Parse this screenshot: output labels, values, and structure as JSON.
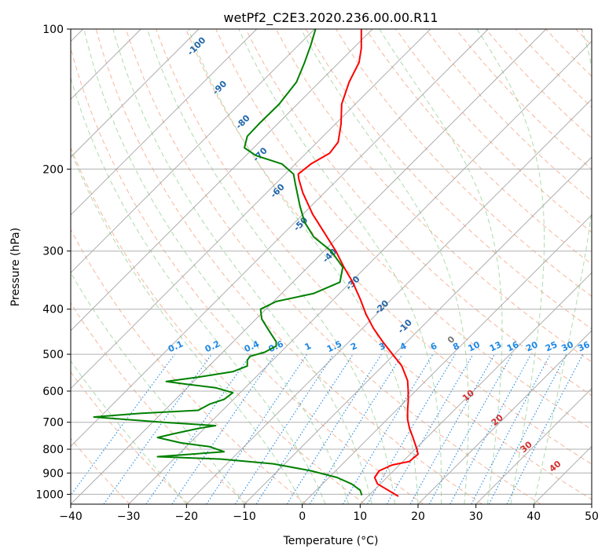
{
  "chart_data": {
    "type": "line",
    "title": "wetPf2_C2E3.2020.236.00.00.R11",
    "xlabel": "Temperature (°C)",
    "ylabel": "Pressure (hPa)",
    "xlim": [
      -40,
      50
    ],
    "ylim": [
      1050,
      100
    ],
    "y_scale": "log",
    "x_ticks": [
      -40,
      -30,
      -20,
      -10,
      0,
      10,
      20,
      30,
      40,
      50
    ],
    "y_ticks": [
      100,
      200,
      300,
      400,
      500,
      600,
      700,
      800,
      900,
      1000
    ],
    "x_tick_labels": [
      "−40",
      "−30",
      "−20",
      "−10",
      "0",
      "10",
      "20",
      "30",
      "40",
      "50"
    ],
    "y_tick_labels": [
      "100",
      "200",
      "300",
      "400",
      "500",
      "600",
      "700",
      "800",
      "900",
      "1000"
    ],
    "grid": true,
    "colors": {
      "temperature": "#ff0000",
      "dewpoint": "#008000",
      "isotherm": "#999999",
      "dry_adiabat": "#f4a582",
      "moist_adiabat": "#91cf91",
      "mixing_ratio": "#1e88e5",
      "dry_adiabat_label": "#2166ac",
      "moist_label": "#d32f2f"
    },
    "series": [
      {
        "role": "temperature",
        "points": [
          [
            16.6,
            1010
          ],
          [
            13.0,
            950
          ],
          [
            12.5,
            920
          ],
          [
            13.3,
            890
          ],
          [
            15.5,
            865
          ],
          [
            18.5,
            850
          ],
          [
            20.0,
            820
          ],
          [
            19.8,
            800
          ],
          [
            19.2,
            760
          ],
          [
            18.5,
            720
          ],
          [
            18.2,
            690
          ],
          [
            18.2,
            660
          ],
          [
            18.3,
            630
          ],
          [
            18.3,
            600
          ],
          [
            18.2,
            570
          ],
          [
            17.2,
            530
          ],
          [
            15.6,
            500
          ],
          [
            13.9,
            470
          ],
          [
            12.3,
            440
          ],
          [
            11.0,
            410
          ],
          [
            10.0,
            380
          ],
          [
            8.7,
            350
          ],
          [
            7.2,
            325
          ],
          [
            5.8,
            300
          ],
          [
            3.9,
            275
          ],
          [
            1.8,
            250
          ],
          [
            0.1,
            225
          ],
          [
            -0.6,
            210
          ],
          [
            -0.7,
            205
          ],
          [
            1.5,
            195
          ],
          [
            4.7,
            185
          ],
          [
            6.2,
            175
          ],
          [
            6.7,
            160
          ],
          [
            6.8,
            145
          ],
          [
            8.1,
            130
          ],
          [
            9.8,
            118
          ],
          [
            10.2,
            110
          ],
          [
            10.2,
            100
          ]
        ]
      },
      {
        "role": "dewpoint",
        "points": [
          [
            10.3,
            1005
          ],
          [
            10.0,
            980
          ],
          [
            8.5,
            950
          ],
          [
            6.0,
            920
          ],
          [
            1.5,
            890
          ],
          [
            -5.0,
            860
          ],
          [
            -14.0,
            840
          ],
          [
            -25.0,
            830
          ],
          [
            -13.5,
            810
          ],
          [
            -16.0,
            790
          ],
          [
            -21.0,
            775
          ],
          [
            -25.0,
            755
          ],
          [
            -22.0,
            740
          ],
          [
            -18.0,
            722
          ],
          [
            -15.0,
            712
          ],
          [
            -24.0,
            700
          ],
          [
            -36.0,
            682
          ],
          [
            -28.0,
            670
          ],
          [
            -18.0,
            660
          ],
          [
            -16.0,
            640
          ],
          [
            -13.5,
            625
          ],
          [
            -12.0,
            605
          ],
          [
            -15.0,
            590
          ],
          [
            -20.0,
            580
          ],
          [
            -23.5,
            572
          ],
          [
            -18.0,
            560
          ],
          [
            -12.0,
            545
          ],
          [
            -9.5,
            530
          ],
          [
            -9.5,
            515
          ],
          [
            -9.0,
            505
          ],
          [
            -6.5,
            495
          ],
          [
            -4.5,
            480
          ],
          [
            -4.5,
            470
          ],
          [
            -5.0,
            460
          ],
          [
            -6.0,
            440
          ],
          [
            -7.0,
            420
          ],
          [
            -7.2,
            400
          ],
          [
            -4.5,
            385
          ],
          [
            2.0,
            370
          ],
          [
            6.5,
            350
          ],
          [
            7.0,
            325
          ],
          [
            5.0,
            300
          ],
          [
            2.0,
            280
          ],
          [
            0.4,
            260
          ],
          [
            -0.4,
            240
          ],
          [
            -1.2,
            215
          ],
          [
            -1.5,
            205
          ],
          [
            -3.5,
            195
          ],
          [
            -8.0,
            187
          ],
          [
            -10.0,
            180
          ],
          [
            -9.5,
            170
          ],
          [
            -7.5,
            160
          ],
          [
            -4.0,
            145
          ],
          [
            -1.0,
            130
          ],
          [
            0.4,
            118
          ],
          [
            1.5,
            108
          ],
          [
            2.3,
            100
          ]
        ]
      }
    ],
    "isotherm_labels_c": [],
    "dry_adiabat_labels": [
      "-100",
      "-90",
      "-80",
      "-70",
      "-60",
      "-50",
      "-40",
      "-30",
      "-20",
      "-10",
      "0"
    ],
    "moist_adiabat_labels": [
      "10",
      "20",
      "30",
      "40"
    ],
    "mixing_ratio_labels": [
      "0.1",
      "0.2",
      "0.4",
      "0.6",
      "1",
      "1.5",
      "2",
      "3",
      "4",
      "6",
      "8",
      "10",
      "13",
      "16",
      "20",
      "25",
      "30",
      "36"
    ]
  }
}
